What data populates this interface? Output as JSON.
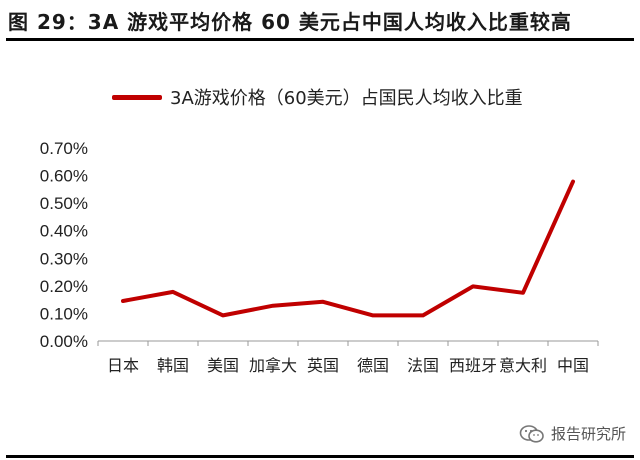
{
  "header": {
    "title": "图 29：3A 游戏平均价格 60 美元占中国人均收入比重较高"
  },
  "watermark": {
    "text": "报告研究所",
    "icon": "wechat-icon"
  },
  "chart_data": {
    "type": "line",
    "title": "",
    "xlabel": "",
    "ylabel": "",
    "categories": [
      "日本",
      "韩国",
      "美国",
      "加拿大",
      "英国",
      "德国",
      "法国",
      "西班牙",
      "意大利",
      "中国"
    ],
    "series": [
      {
        "name": "3A游戏价格（60美元）占国民人均收入比重",
        "color": "#c00000",
        "values": [
          0.145,
          0.178,
          0.093,
          0.128,
          0.142,
          0.093,
          0.093,
          0.198,
          0.175,
          0.578
        ]
      }
    ],
    "ylim": [
      0,
      0.7
    ],
    "yticks": [
      "0.00%",
      "0.10%",
      "0.20%",
      "0.30%",
      "0.40%",
      "0.50%",
      "0.60%",
      "0.70%"
    ],
    "legend_position": "top",
    "grid": false
  }
}
